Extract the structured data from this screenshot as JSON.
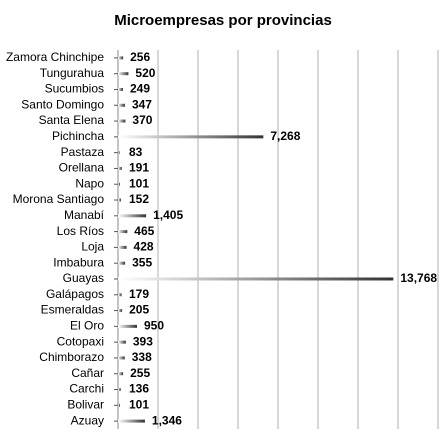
{
  "chart_data": {
    "type": "hbar",
    "title": "Microempresas por provincias",
    "categories": [
      "Zamora Chinchipe",
      "Tungurahua",
      "Sucumbios",
      "Santo Domingo",
      "Santa Elena",
      "Pichincha",
      "Pastaza",
      "Orellana",
      "Napo",
      "Morona Santiago",
      "Manabí",
      "Los Ríos",
      "Loja",
      "Imbabura",
      "Guayas",
      "Galápagos",
      "Esmeraldas",
      "El Oro",
      "Cotopaxi",
      "Chimborazo",
      "Cañar",
      "Carchi",
      "Bolivar",
      "Azuay"
    ],
    "values": [
      256,
      520,
      249,
      347,
      370,
      7268,
      83,
      191,
      101,
      152,
      1405,
      465,
      428,
      355,
      13768,
      179,
      205,
      950,
      393,
      338,
      255,
      136,
      101,
      1346
    ],
    "value_labels": [
      "256",
      "520",
      "249",
      "347",
      "370",
      "7,268",
      "83",
      "191",
      "101",
      "152",
      "1,405",
      "465",
      "428",
      "355",
      "13,768",
      "179",
      "205",
      "950",
      "393",
      "338",
      "255",
      "136",
      "101",
      "1,346"
    ],
    "color": "#3a3a3a",
    "xlim": [
      0,
      16000
    ],
    "xticks": [
      0,
      2000,
      4000,
      6000,
      8000,
      10000,
      12000,
      14000,
      16000
    ],
    "grid": true
  }
}
